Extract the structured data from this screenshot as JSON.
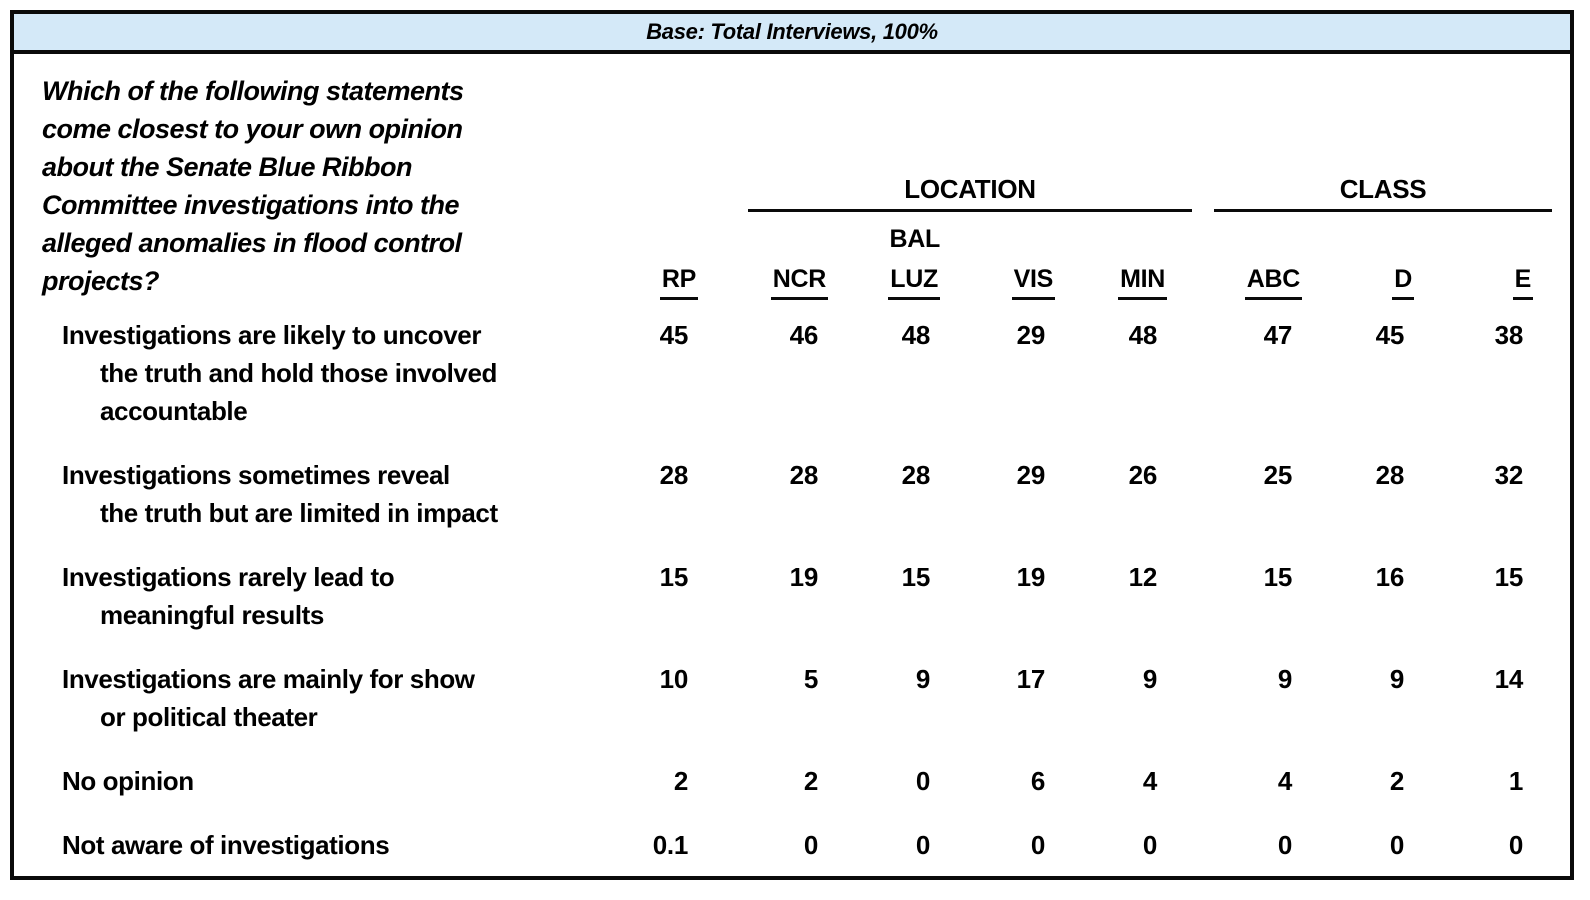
{
  "base_bar": {
    "label": "Base: Total Interviews, 100%"
  },
  "question": "Which of the following statements\ncome closest to your own opinion\nabout the Senate Blue Ribbon\nCommittee investigations into the\nalleged anomalies in flood control\nprojects?",
  "table": {
    "group_headers": {
      "location": "LOCATION",
      "class": "CLASS"
    },
    "column_headers": {
      "rp": "RP",
      "ncr": "NCR",
      "balluz_top": "BAL",
      "balluz": "LUZ",
      "vis": "VIS",
      "min": "MIN",
      "abc": "ABC",
      "d": "D",
      "e": "E"
    },
    "rows": [
      {
        "label": "Investigations are likely to uncover\nthe truth and hold those involved\naccountable",
        "values": {
          "rp": "45",
          "ncr": "46",
          "balluz": "48",
          "vis": "29",
          "min": "48",
          "abc": "47",
          "d": "45",
          "e": "38"
        }
      },
      {
        "label": "Investigations sometimes reveal\nthe truth but are limited in impact",
        "values": {
          "rp": "28",
          "ncr": "28",
          "balluz": "28",
          "vis": "29",
          "min": "26",
          "abc": "25",
          "d": "28",
          "e": "32"
        }
      },
      {
        "label": "Investigations rarely lead to\nmeaningful results",
        "values": {
          "rp": "15",
          "ncr": "19",
          "balluz": "15",
          "vis": "19",
          "min": "12",
          "abc": "15",
          "d": "16",
          "e": "15"
        }
      },
      {
        "label": "Investigations are mainly for show\nor political theater",
        "values": {
          "rp": "10",
          "ncr": "5",
          "balluz": "9",
          "vis": "17",
          "min": "9",
          "abc": "9",
          "d": "9",
          "e": "14"
        }
      },
      {
        "label": "No opinion",
        "values": {
          "rp": "2",
          "ncr": "2",
          "balluz": "0",
          "vis": "6",
          "min": "4",
          "abc": "4",
          "d": "2",
          "e": "1"
        }
      },
      {
        "label": "Not aware of investigations",
        "values": {
          "rp": "0.1",
          "ncr": "0",
          "balluz": "0",
          "vis": "0",
          "min": "0",
          "abc": "0",
          "d": "0",
          "e": "0"
        }
      }
    ]
  },
  "colors": {
    "header_bg": "#d4e9f8",
    "border": "#0a0a0a"
  }
}
